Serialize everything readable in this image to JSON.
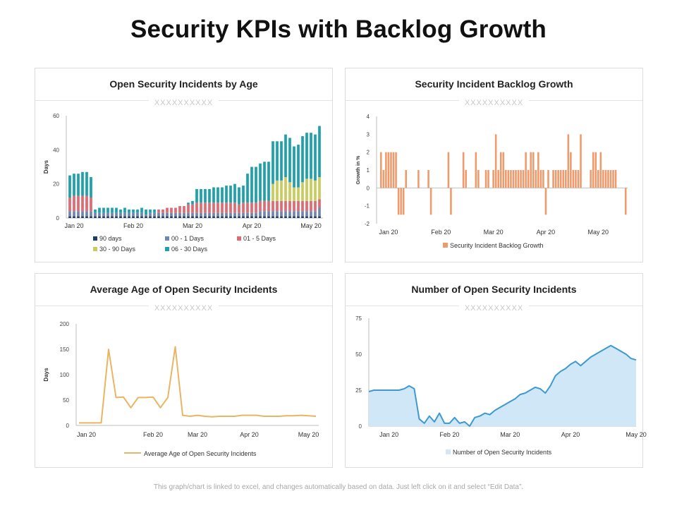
{
  "title": "Security KPIs with Backlog Growth",
  "footnote": "This graph/chart is linked to excel, and changes automatically based on data. Just left click on it and select “Edit Data”.",
  "placeholder_text": "XXXXXXXXXX",
  "colors": {
    "d90": "#1f3f5f",
    "d00_01": "#6f86b8",
    "d01_05": "#e06a72",
    "d30_90": "#c8cc5c",
    "d06_30": "#1ea1aa",
    "growth": "#f0996a",
    "avg_line": "#e8b565",
    "count_line": "#3d9ad0",
    "count_fill": "#cfe7f6"
  },
  "chart_data": [
    {
      "id": "age",
      "type": "bar",
      "stacked": true,
      "title": "Open Security Incidents by Age",
      "ylabel": "Days",
      "ylim": [
        0,
        60
      ],
      "yticks": [
        0,
        20,
        40,
        60
      ],
      "xtick_labels": [
        "Jan 20",
        "Feb 20",
        "Mar 20",
        "Apr 20",
        "May 20"
      ],
      "xtick_index": [
        1,
        15,
        29,
        43,
        57
      ],
      "series": [
        {
          "name": "90 days",
          "color_key": "d90",
          "values": [
            1,
            1,
            1,
            1,
            1,
            1,
            1,
            1,
            1,
            1,
            1,
            1,
            1,
            1,
            1,
            1,
            1,
            1,
            1,
            1,
            1,
            1,
            1,
            1,
            1,
            1,
            1,
            1,
            1,
            1,
            1,
            1,
            1,
            1,
            1,
            1,
            1,
            1,
            1,
            1,
            1,
            1,
            1,
            1,
            1,
            1,
            1,
            1,
            1,
            1,
            1,
            1,
            1,
            1,
            1,
            1,
            1,
            1,
            1,
            1
          ]
        },
        {
          "name": "00 - 1 Days",
          "color_key": "d00_01",
          "values": [
            3,
            3,
            3,
            3,
            3,
            3,
            2,
            2,
            2,
            2,
            2,
            2,
            2,
            2,
            2,
            2,
            2,
            2,
            1,
            2,
            2,
            2,
            2,
            2,
            2,
            2,
            2,
            2,
            2,
            2,
            2,
            2,
            2,
            2,
            2,
            2,
            2,
            2,
            2,
            2,
            2,
            2,
            2,
            2,
            2,
            3,
            3,
            3,
            3,
            3,
            3,
            3,
            3,
            3,
            3,
            3,
            3,
            3,
            3,
            5
          ]
        },
        {
          "name": "01 - 5 Days",
          "color_key": "d01_05",
          "values": [
            8,
            9,
            9,
            9,
            9,
            8,
            0,
            0,
            0,
            0,
            0,
            0,
            0,
            0,
            0,
            0,
            0,
            0,
            0,
            0,
            0,
            2,
            2,
            3,
            3,
            3,
            4,
            4,
            5,
            5,
            6,
            6,
            6,
            6,
            6,
            6,
            6,
            6,
            6,
            6,
            5,
            6,
            6,
            6,
            6,
            6,
            6,
            6,
            6,
            6,
            6,
            6,
            6,
            6,
            6,
            6,
            6,
            6,
            6,
            5
          ]
        },
        {
          "name": "30 - 90 Days",
          "color_key": "d30_90",
          "values": [
            0,
            0,
            0,
            0,
            0,
            0,
            0,
            0,
            0,
            0,
            0,
            0,
            0,
            0,
            0,
            0,
            0,
            0,
            0,
            0,
            0,
            0,
            0,
            0,
            0,
            0,
            0,
            0,
            0,
            0,
            0,
            0,
            0,
            0,
            0,
            0,
            0,
            0,
            0,
            0,
            0,
            0,
            0,
            0,
            0,
            0,
            0,
            0,
            10,
            12,
            12,
            14,
            11,
            8,
            8,
            11,
            13,
            13,
            12,
            13
          ]
        },
        {
          "name": "06 - 30 Days",
          "color_key": "d06_30",
          "values": [
            13,
            13,
            13,
            14,
            14,
            12,
            2,
            3,
            3,
            3,
            3,
            3,
            2,
            3,
            2,
            2,
            2,
            3,
            3,
            2,
            2,
            0,
            0,
            0,
            0,
            0,
            0,
            0,
            1,
            2,
            8,
            8,
            8,
            8,
            9,
            9,
            9,
            10,
            10,
            11,
            10,
            10,
            17,
            21,
            21,
            22,
            23,
            23,
            25,
            23,
            23,
            25,
            26,
            24,
            25,
            27,
            27,
            27,
            27,
            30
          ]
        }
      ],
      "legend": [
        "90 days",
        "00 - 1 Days",
        "01 - 5 Days",
        "30 - 90 Days",
        "06 - 30 Days"
      ]
    },
    {
      "id": "growth",
      "type": "bar",
      "title": "Security Incident Backlog Growth",
      "ylabel": "Growth in %",
      "ylim": [
        -2,
        4
      ],
      "yticks": [
        -2,
        -1,
        0,
        1,
        2,
        3,
        4
      ],
      "xtick_labels": [
        "Jan 20",
        "Feb 20",
        "Mar 20",
        "Apr 20",
        "May 20"
      ],
      "xtick_index": [
        4,
        25,
        46,
        67,
        88
      ],
      "series": [
        {
          "name": "Security Incident Backlog Growth",
          "color_key": "growth",
          "values": [
            0,
            2,
            1,
            2,
            2,
            2,
            2,
            2,
            -1.5,
            -1.5,
            -1.5,
            1,
            0,
            0,
            0,
            0,
            1,
            0,
            0,
            0,
            1,
            -1.5,
            0,
            0,
            0,
            0,
            0,
            0,
            2,
            -1.5,
            0,
            0,
            0,
            0,
            2,
            1,
            0,
            0,
            0,
            2,
            1,
            0,
            0,
            1,
            1,
            0,
            1,
            3,
            1,
            2,
            2,
            1,
            1,
            1,
            1,
            1,
            1,
            1,
            1,
            2,
            1,
            2,
            2,
            1,
            2,
            1,
            1,
            -1.5,
            1,
            0,
            1,
            1,
            1,
            1,
            1,
            1,
            3,
            2,
            1,
            1,
            1,
            3,
            0,
            0,
            0,
            1,
            2,
            2,
            1,
            2,
            1,
            1,
            1,
            1,
            1,
            1,
            0,
            0,
            0,
            -1.5
          ]
        }
      ],
      "legend": [
        "Security Incident Backlog Growth"
      ]
    },
    {
      "id": "avg",
      "type": "line",
      "title": "Average Age of Open Security Incidents",
      "ylabel": "Days",
      "ylim": [
        0,
        200
      ],
      "yticks": [
        0,
        50,
        100,
        150,
        200
      ],
      "xtick_labels": [
        "Jan 20",
        "Feb 20",
        "Mar 20",
        "Apr 20",
        "May 20"
      ],
      "xtick_index": [
        1,
        10,
        16,
        23,
        31
      ],
      "series": [
        {
          "name": "Average Age of Open Security Incidents",
          "color_key": "avg_line",
          "values": [
            5,
            5,
            5,
            5,
            150,
            55,
            56,
            35,
            55,
            55,
            56,
            35,
            55,
            155,
            20,
            18,
            20,
            18,
            17,
            18,
            18,
            18,
            20,
            20,
            20,
            18,
            18,
            18,
            19,
            19,
            20,
            19,
            18
          ]
        }
      ],
      "legend": [
        "Average Age of Open Security Incidents"
      ]
    },
    {
      "id": "count",
      "type": "area",
      "title": "Number of Open Security Incidents",
      "ylabel": "",
      "ylim": [
        0,
        75
      ],
      "yticks": [
        0,
        25,
        50,
        75
      ],
      "xtick_labels": [
        "Jan 20",
        "Feb 20",
        "Mar 20",
        "Apr 20",
        "May 20"
      ],
      "xtick_index": [
        4,
        16,
        28,
        40,
        53
      ],
      "series": [
        {
          "name": "Number of Open Security Incidents",
          "color_key": "count_line",
          "values": [
            24,
            25,
            25,
            25,
            25,
            25,
            25,
            26,
            28,
            26,
            5,
            2,
            7,
            3,
            9,
            2,
            2,
            6,
            2,
            3,
            0,
            6,
            7,
            9,
            8,
            11,
            13,
            15,
            17,
            19,
            22,
            23,
            25,
            27,
            26,
            23,
            28,
            35,
            38,
            40,
            43,
            45,
            42,
            45,
            48,
            50,
            52,
            54,
            56,
            54,
            52,
            50,
            47,
            46
          ]
        }
      ],
      "legend": [
        "Number of Open Security Incidents"
      ]
    }
  ]
}
